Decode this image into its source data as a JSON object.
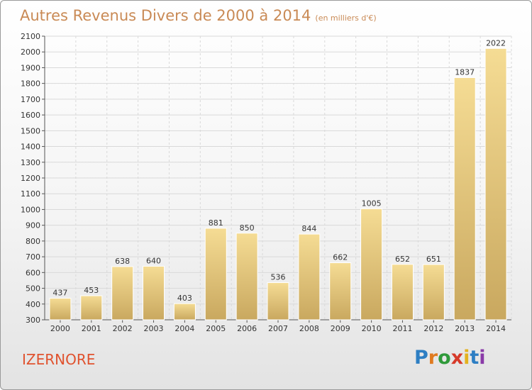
{
  "header": {
    "title": "Autres Revenus Divers de 2000 à 2014",
    "unit": "(en milliers d'€)"
  },
  "location": "IZERNORE",
  "brand": {
    "letters": [
      "P",
      "r",
      "o",
      "x",
      "i",
      "t",
      "i"
    ]
  },
  "colors": {
    "bar_light": "#f5dc94",
    "bar_dark": "#c9a85f",
    "title": "#c98a55",
    "city": "#e0522e"
  },
  "chart_data": {
    "type": "bar",
    "title": "Autres Revenus Divers de 2000 à 2014",
    "subtitle": "(en milliers d'€)",
    "categories": [
      "2000",
      "2001",
      "2002",
      "2003",
      "2004",
      "2005",
      "2006",
      "2007",
      "2008",
      "2009",
      "2010",
      "2011",
      "2012",
      "2013",
      "2014"
    ],
    "values": [
      437,
      453,
      638,
      640,
      403,
      881,
      850,
      536,
      844,
      662,
      1005,
      652,
      651,
      1837,
      2022
    ],
    "ylim": [
      300,
      2100
    ],
    "yticks": [
      300,
      400,
      500,
      600,
      700,
      800,
      900,
      1000,
      1100,
      1200,
      1300,
      1400,
      1500,
      1600,
      1700,
      1800,
      1900,
      2000,
      2100
    ],
    "grid": true,
    "data_labels": true
  }
}
